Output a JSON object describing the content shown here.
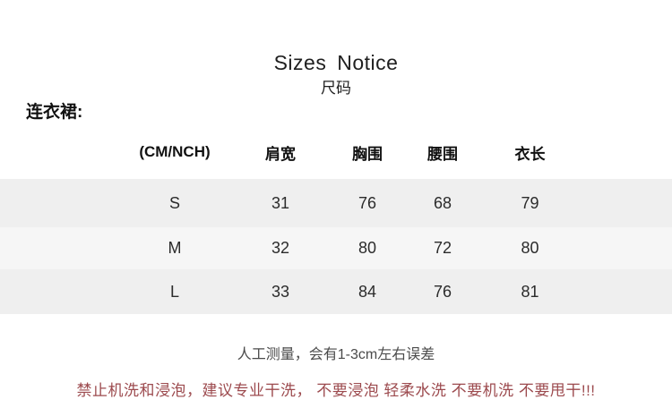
{
  "page": {
    "title": "Sizes Notice",
    "subtitle": "尺码",
    "category_label": "连衣裙:"
  },
  "size_table": {
    "unit_header": "(CM/NCH)",
    "columns": [
      "肩宽",
      "胸围",
      "腰围",
      "衣长"
    ],
    "rows": [
      {
        "size": "S",
        "values": [
          "31",
          "76",
          "68",
          "79"
        ]
      },
      {
        "size": "M",
        "values": [
          "32",
          "80",
          "72",
          "80"
        ]
      },
      {
        "size": "L",
        "values": [
          "33",
          "84",
          "76",
          "81"
        ]
      }
    ]
  },
  "notes": {
    "measurement": "人工测量，会有1-3cm左右误差",
    "care_warning": "禁止机洗和浸泡，建议专业干洗， 不要浸泡 轻柔水洗 不要机洗 不要甩干!!!"
  },
  "colors": {
    "row_bg_odd": "#efefef",
    "row_bg_even": "#f6f6f6",
    "warning_text": "#9c4a4e",
    "body_text": "#1a1a1a"
  }
}
